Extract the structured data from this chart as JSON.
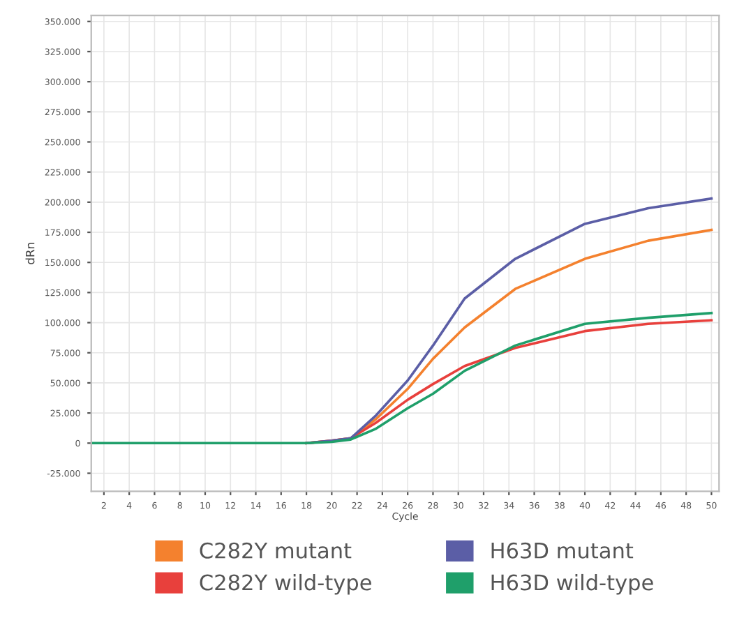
{
  "chart_data": {
    "type": "line",
    "xlabel": "Cycle",
    "ylabel": "dRn",
    "x": [
      1,
      5,
      10,
      15,
      18,
      20,
      21.5,
      23.5,
      26,
      28,
      30.5,
      34.5,
      40,
      45,
      50
    ],
    "series": [
      {
        "name": "C282Y mutant",
        "color": "#f4812e",
        "values": [
          null,
          null,
          null,
          null,
          0,
          2000,
          4000,
          20000,
          45000,
          70000,
          96000,
          128000,
          153000,
          168000,
          177000
        ]
      },
      {
        "name": "C282Y wild-type",
        "color": "#e8403c",
        "values": [
          null,
          null,
          null,
          null,
          0,
          2000,
          4000,
          17000,
          36000,
          49000,
          64000,
          79000,
          93000,
          99000,
          102000
        ]
      },
      {
        "name": "H63D mutant",
        "color": "#5b5ea6",
        "values": [
          null,
          null,
          null,
          null,
          0,
          2000,
          4000,
          23000,
          52000,
          81000,
          120000,
          153000,
          182000,
          195000,
          203000
        ]
      },
      {
        "name": "H63D wild-type",
        "color": "#1f9f6a",
        "values": [
          0,
          0,
          0,
          0,
          0,
          1000,
          3000,
          12000,
          29000,
          41000,
          60000,
          81000,
          99000,
          104000,
          108000
        ]
      }
    ],
    "xlim": [
      1,
      50.6
    ],
    "xticks": [
      2,
      4,
      6,
      8,
      10,
      12,
      14,
      16,
      18,
      20,
      22,
      24,
      26,
      28,
      30,
      32,
      34,
      36,
      38,
      40,
      42,
      44,
      46,
      48,
      50
    ],
    "ylim": [
      -40000,
      355000
    ],
    "yticks": [
      {
        "value": -25000,
        "label": "-25.000"
      },
      0,
      {
        "value": 25000,
        "label": "25.000"
      },
      {
        "value": 50000,
        "label": "50.000"
      },
      {
        "value": 75000,
        "label": "75.000"
      },
      {
        "value": 100000,
        "label": "100.000"
      },
      {
        "value": 125000,
        "label": "125.000"
      },
      {
        "value": 150000,
        "label": "150.000"
      },
      {
        "value": 175000,
        "label": "175.000"
      },
      {
        "value": 200000,
        "label": "200.000"
      },
      {
        "value": 225000,
        "label": "225.000"
      },
      {
        "value": 250000,
        "label": "250.000"
      },
      {
        "value": 275000,
        "label": "275.000"
      },
      {
        "value": 300000,
        "label": "300.000"
      },
      {
        "value": 325000,
        "label": "325.000"
      },
      {
        "value": 350000,
        "label": "350.000"
      }
    ],
    "grid": true,
    "legend": "bottom",
    "marker": "none",
    "line_style": "solid"
  }
}
